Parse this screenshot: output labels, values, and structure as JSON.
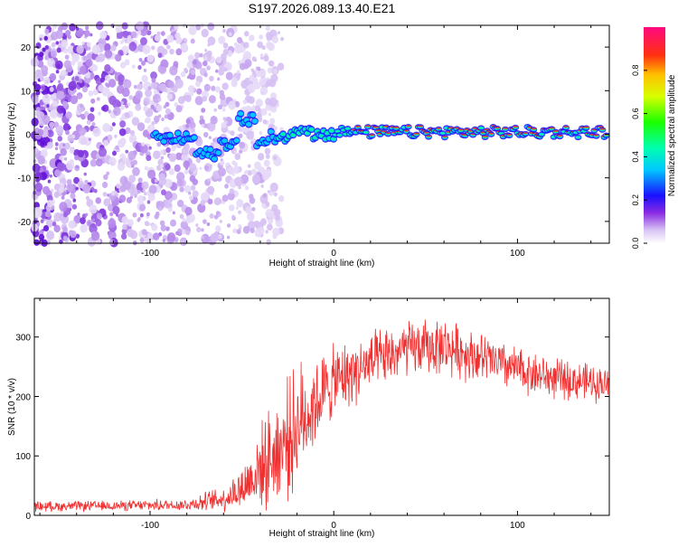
{
  "title": "S197.2026.089.13.40.E21",
  "chart_data": [
    {
      "type": "heatmap",
      "title": "S197.2026.089.13.40.E21",
      "xlabel": "Height of straight line (km)",
      "ylabel": "Frequency (Hz)",
      "xlim": [
        -163,
        150
      ],
      "ylim": [
        -25,
        25
      ],
      "xticks": [
        -100,
        0,
        100
      ],
      "yticks": [
        -20,
        -10,
        0,
        10,
        20
      ],
      "colorbar": {
        "label": "Normalized spectral amplitude",
        "range": [
          0.0,
          1.0
        ],
        "ticks": [
          0.0,
          0.2,
          0.4,
          0.6,
          0.8
        ]
      },
      "description_points": [
        {
          "x": -163,
          "noise": "broadband, all frequencies"
        },
        {
          "x": -70,
          "center_freq": -5
        },
        {
          "x": -45,
          "center_freq": 4
        },
        {
          "x": -20,
          "center_freq": 1
        },
        {
          "x": 0,
          "center_freq": 0.5
        },
        {
          "x": 150,
          "center_freq": 0.5
        }
      ]
    },
    {
      "type": "line",
      "xlabel": "Height of straight line (km)",
      "ylabel": "SNR (10 * v/v)",
      "xlim": [
        -163,
        150
      ],
      "ylim": [
        0,
        365
      ],
      "xticks": [
        -100,
        0,
        100
      ],
      "yticks": [
        0,
        100,
        200,
        300
      ],
      "series": [
        {
          "name": "SNR",
          "color": "#f03030",
          "envelope_x": [
            -163,
            -120,
            -80,
            -60,
            -50,
            -40,
            -30,
            -20,
            -10,
            0,
            20,
            40,
            60,
            80,
            100,
            120,
            150
          ],
          "envelope_mean": [
            15,
            16,
            18,
            28,
            45,
            80,
            110,
            150,
            190,
            225,
            255,
            280,
            285,
            265,
            245,
            230,
            220
          ],
          "envelope_spread": [
            10,
            10,
            12,
            25,
            45,
            80,
            110,
            120,
            90,
            70,
            60,
            55,
            55,
            50,
            45,
            40,
            35
          ]
        }
      ]
    }
  ]
}
